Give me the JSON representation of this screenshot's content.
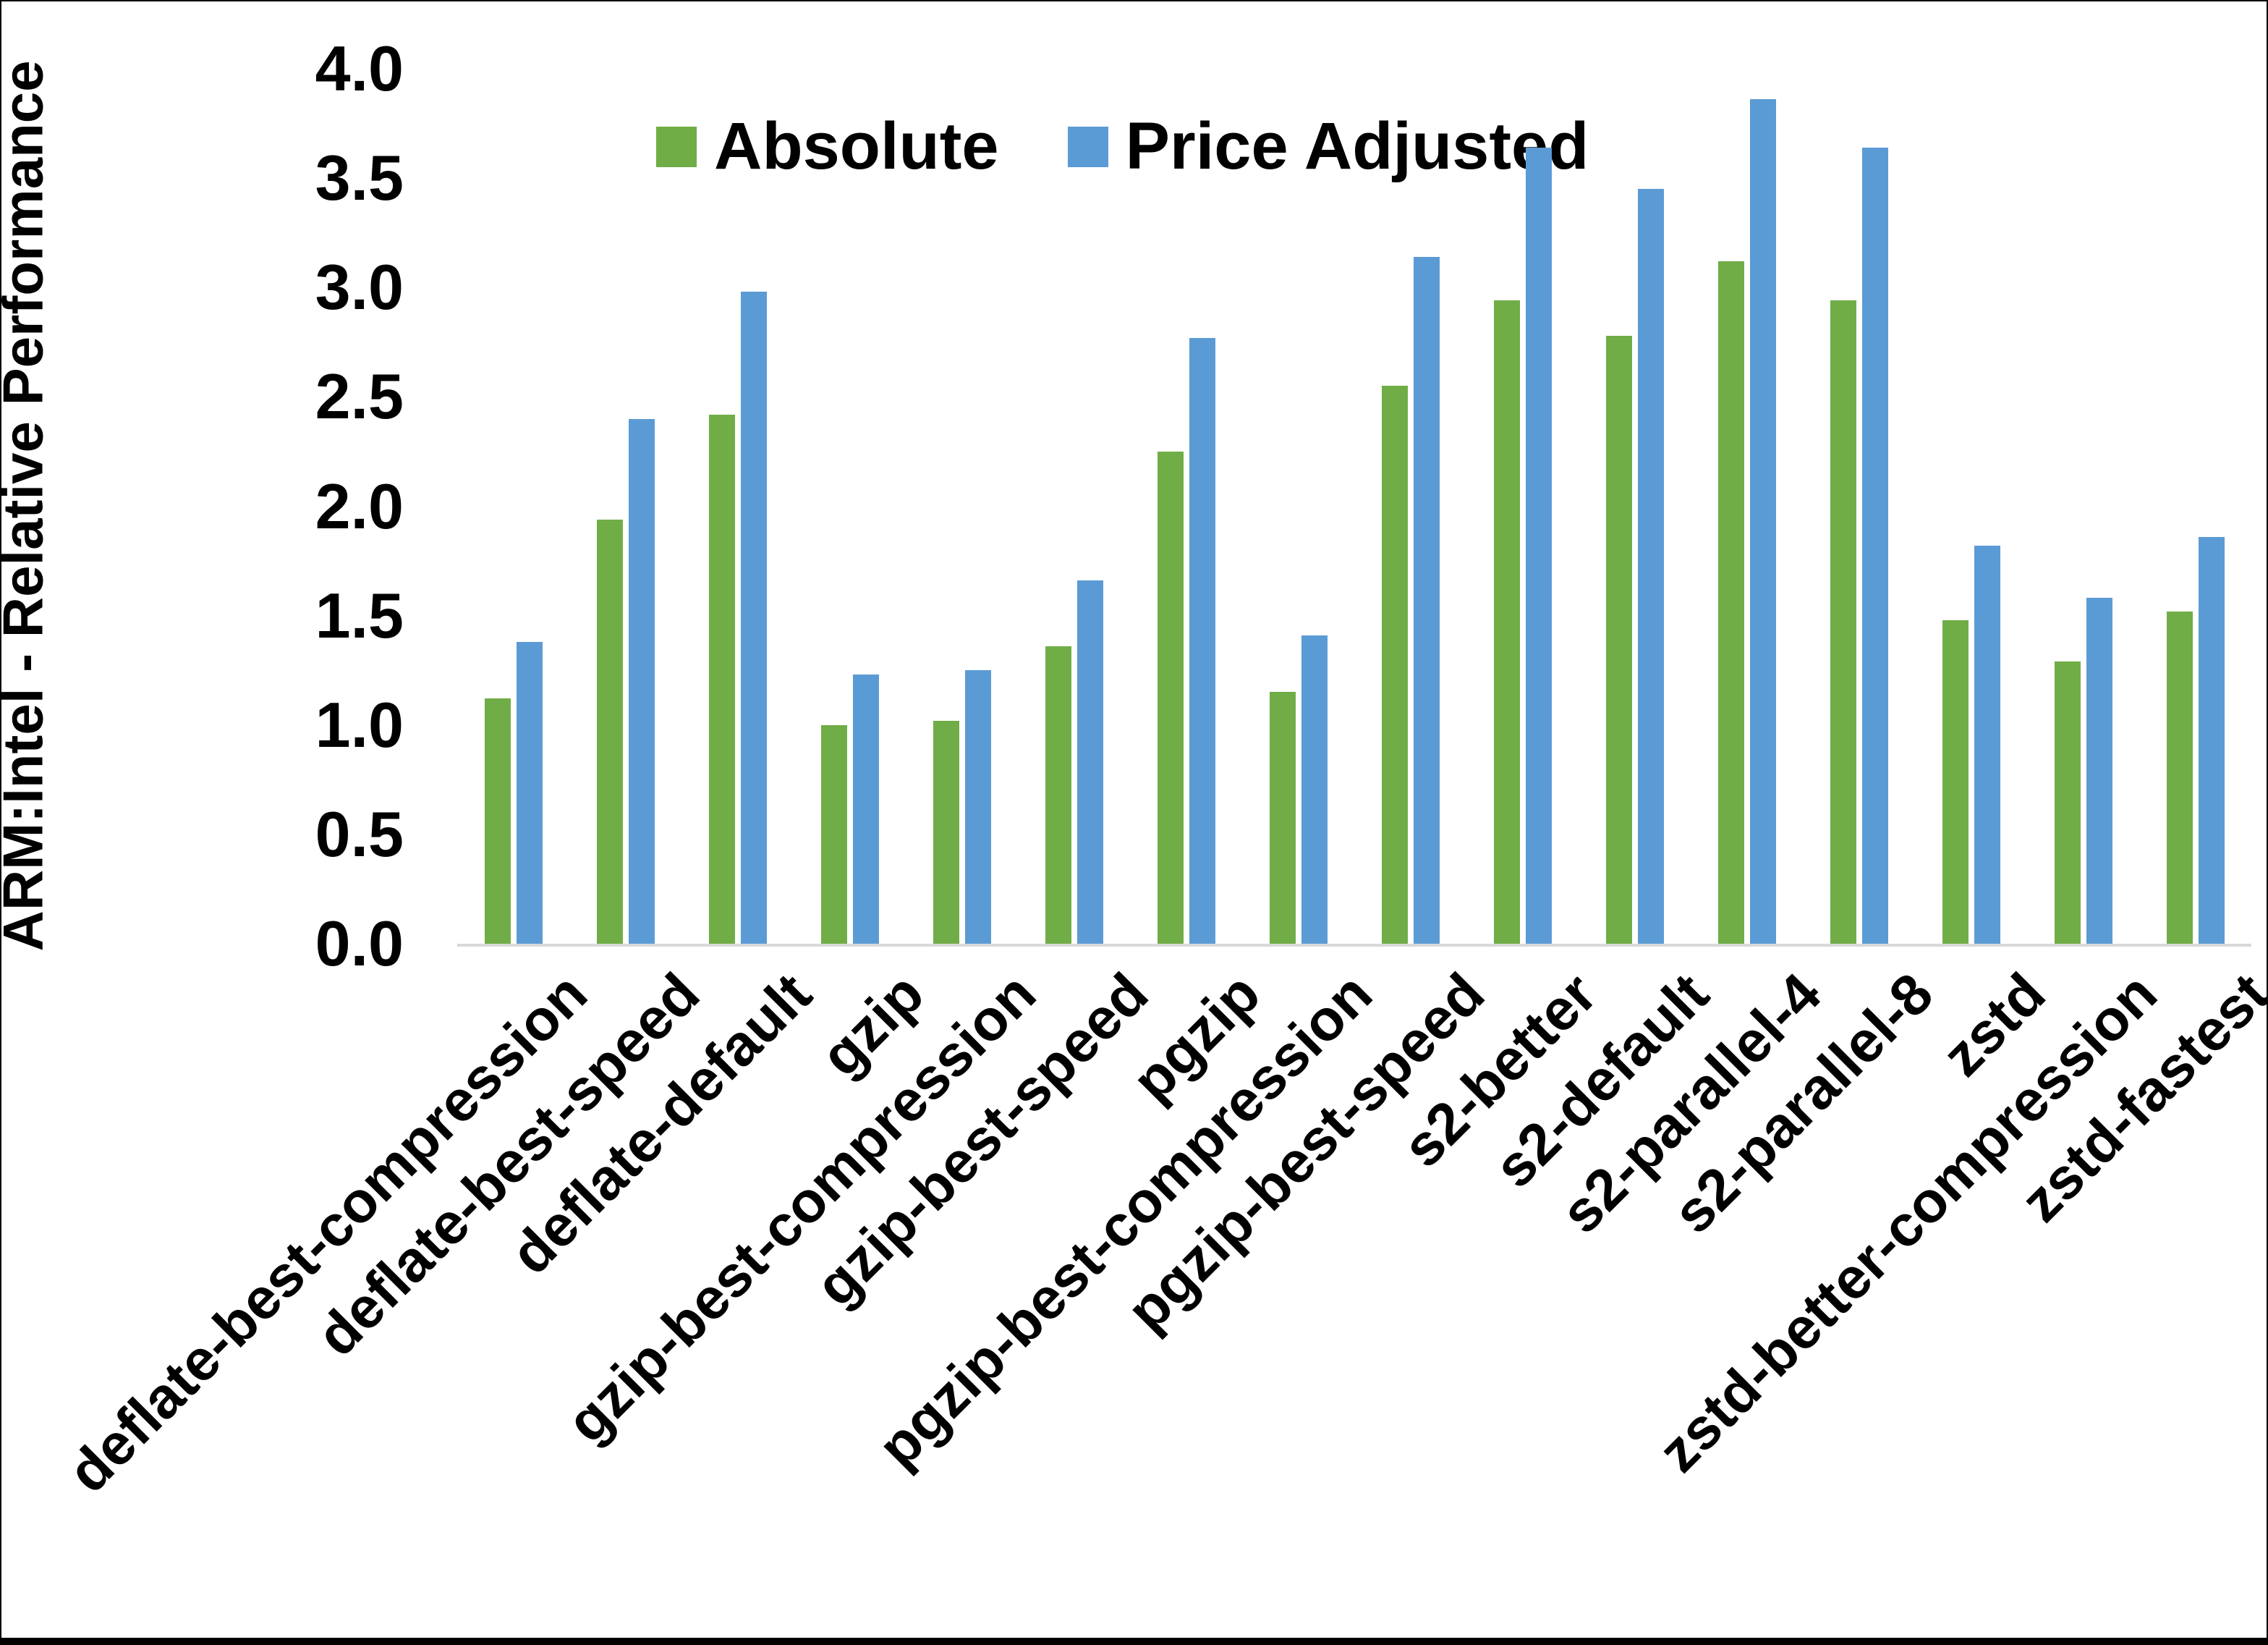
{
  "window": {
    "background": "#FFFFFF",
    "border_color": "#000000"
  },
  "chart_data": {
    "type": "bar",
    "title": "",
    "xlabel": "",
    "ylabel": "ARM:Intel - Relative Performance",
    "ylim": [
      0.0,
      4.0
    ],
    "ytick_labels": [
      "4.0",
      "3.5",
      "3.0",
      "2.5",
      "2.0",
      "1.5",
      "1.0",
      "0.5",
      "0.0"
    ],
    "grid": false,
    "axis_line_color": "#D9D9D9",
    "legend_position": "top",
    "categories": [
      "deflate-best-compression",
      "deflate-best-speed",
      "deflate-default",
      "gzip",
      "gzip-best-compression",
      "gzip-best-speed",
      "pgzip",
      "pgzip-best-compression",
      "pgzip-best-speed",
      "s2-better",
      "s2-default",
      "s2-parallel-4",
      "s2-parallel-8",
      "zstd",
      "zstd-better-compression",
      "zstd-fastest"
    ],
    "series": [
      {
        "name": "Absolute",
        "color": "#70AD47",
        "values": [
          1.12,
          1.94,
          2.42,
          1.0,
          1.02,
          1.36,
          2.25,
          1.15,
          2.55,
          2.94,
          2.78,
          3.12,
          2.94,
          1.48,
          1.29,
          1.52
        ]
      },
      {
        "name": "Price Adjusted",
        "color": "#5B9BD5",
        "values": [
          1.38,
          2.4,
          2.98,
          1.23,
          1.25,
          1.66,
          2.77,
          1.41,
          3.14,
          3.64,
          3.45,
          3.86,
          3.64,
          1.82,
          1.58,
          1.86
        ]
      }
    ]
  }
}
